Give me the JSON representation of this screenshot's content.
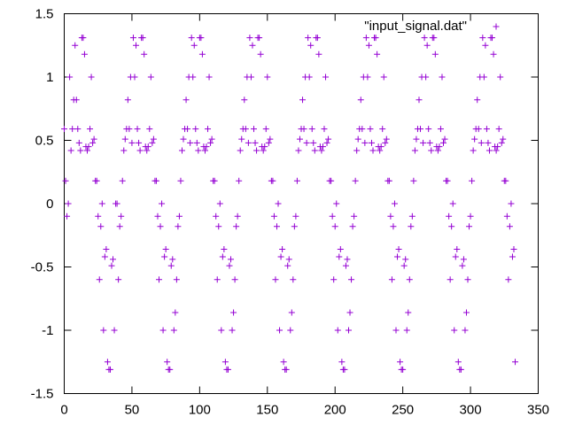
{
  "chart_data": {
    "type": "scatter",
    "title": "",
    "xlabel": "",
    "ylabel": "",
    "xlim": [
      0,
      350
    ],
    "ylim": [
      -1.5,
      1.5
    ],
    "x_ticks": [
      0,
      50,
      100,
      150,
      200,
      250,
      300,
      350
    ],
    "y_ticks": [
      -1.5,
      -1,
      -0.5,
      0,
      0.5,
      1,
      1.5
    ],
    "grid": false,
    "legend_position": "top-right",
    "marker": "plus",
    "series": [
      {
        "name": "\"input_signal.dat\"",
        "color": "#9400d3",
        "x_start": 0,
        "x_step": 1,
        "y": [
          0.59,
          0.18,
          -0.1,
          0,
          1.0,
          0.42,
          0.59,
          0.82,
          1.25,
          0.82,
          0.59,
          0.48,
          0.42,
          1.31,
          1.31,
          1.18,
          0.45,
          0.42,
          0.45,
          0.59,
          1.0,
          0.48,
          0.51,
          0.18,
          0.18,
          -0.1,
          -0.6,
          -0.18,
          0.0,
          -1.0,
          -0.42,
          -0.36,
          -1.25,
          -1.31,
          -1.31,
          -0.49,
          -0.44,
          -1.0,
          0.0,
          0.0,
          -0.6,
          -0.18,
          -0.1,
          0.18,
          0.42,
          0.51,
          0.59,
          0.82,
          0.59,
          1.0,
          0.48,
          1.31,
          1.0,
          1.25,
          0.59,
          0.48,
          0.42,
          1.31,
          1.31,
          1.18,
          0.45,
          0.42,
          0.45,
          0.59,
          1.0,
          0.48,
          0.51,
          0.18,
          0.18,
          -0.1,
          -0.6,
          -0.18,
          0.0,
          -1.0,
          -0.42,
          -0.36,
          -1.25,
          -1.31,
          -1.31,
          -0.49,
          -0.44,
          -1.0,
          -0.86,
          -0.6,
          -0.18,
          -0.1,
          0.18,
          0.42,
          0.51,
          0.59,
          0.82,
          0.59,
          1.0,
          0.48,
          1.31,
          1.0,
          1.25,
          0.59,
          0.48,
          0.42,
          1.31,
          1.31,
          1.18,
          0.45,
          0.42,
          0.45,
          0.59,
          1.0,
          0.48,
          0.51,
          0.18,
          0.18,
          -0.1,
          -0.6,
          -0.18,
          0.0,
          -1.0,
          -0.42,
          -0.36,
          -1.25,
          -1.31,
          -1.31,
          -0.49,
          -0.44,
          -1.0,
          -0.86,
          -0.6,
          -0.18,
          -0.1,
          0.18,
          0.42,
          0.51,
          0.59,
          0.82,
          0.59,
          1.0,
          0.48,
          1.31,
          1.0,
          1.25,
          0.59,
          0.48,
          0.42,
          1.31,
          1.31,
          1.18,
          0.45,
          0.42,
          0.45,
          0.59,
          1.0,
          0.48,
          0.51,
          0.18,
          0.18,
          -0.1,
          -0.6,
          -0.18,
          0.0,
          -1.0,
          -0.42,
          -0.36,
          -1.25,
          -1.31,
          -1.31,
          -0.49,
          -0.44,
          -1.0,
          -0.86,
          -0.6,
          -0.18,
          -0.1,
          0.18,
          0.42,
          0.51,
          0.59,
          0.82,
          0.59,
          1.0,
          0.48,
          1.31,
          1.0,
          1.25,
          0.59,
          0.48,
          0.42,
          1.31,
          1.31,
          1.18,
          0.45,
          0.42,
          0.45,
          0.59,
          1.0,
          0.48,
          0.51,
          0.18,
          0.18,
          -0.1,
          -0.6,
          -0.18,
          0.0,
          -1.0,
          -0.42,
          -0.36,
          -1.25,
          -1.31,
          -1.31,
          -0.49,
          -0.44,
          -1.0,
          -0.86,
          -0.6,
          -0.18,
          -0.1,
          0.18,
          0.42,
          0.51,
          0.59,
          0.82,
          0.59,
          1.0,
          0.48,
          1.31,
          1.0,
          1.25,
          0.59,
          0.48,
          0.42,
          1.31,
          1.31,
          1.18,
          0.45,
          0.42,
          0.45,
          0.59,
          1.0,
          0.48,
          0.51,
          0.18,
          0.18,
          -0.1,
          -0.6,
          -0.18,
          0.0,
          -1.0,
          -0.42,
          -0.36,
          -1.25,
          -1.31,
          -1.31,
          -0.49,
          -0.44,
          -1.0,
          -0.86,
          -0.6,
          -0.18,
          -0.1,
          0.18,
          0.42,
          0.51,
          0.59,
          0.82,
          0.59,
          1.0,
          0.48,
          1.31,
          1.0,
          1.25,
          0.59,
          0.48,
          0.42,
          1.31,
          1.31,
          1.18,
          0.45,
          0.42,
          0.45,
          0.59,
          1.0,
          0.48,
          0.51,
          0.18,
          0.18,
          -0.1,
          -0.6,
          -0.18,
          0.0,
          -1.0,
          -0.42,
          -0.36,
          -1.25,
          -1.31,
          -1.31,
          -0.49,
          -0.44,
          -1.0,
          -0.86,
          -0.6,
          -0.18,
          -0.1,
          0.18,
          0.42,
          0.51,
          0.59,
          0.82,
          0.59,
          1.0,
          0.48,
          1.31,
          1.0,
          1.25,
          0.59,
          0.48,
          0.42,
          1.31,
          1.31,
          1.18,
          0.45,
          0.42,
          0.45,
          0.59,
          1.0,
          0.48,
          0.51,
          0.18,
          0.18,
          -0.1,
          -0.6,
          -0.18,
          0.0,
          -0.42,
          -0.36,
          -1.25
        ]
      }
    ]
  }
}
